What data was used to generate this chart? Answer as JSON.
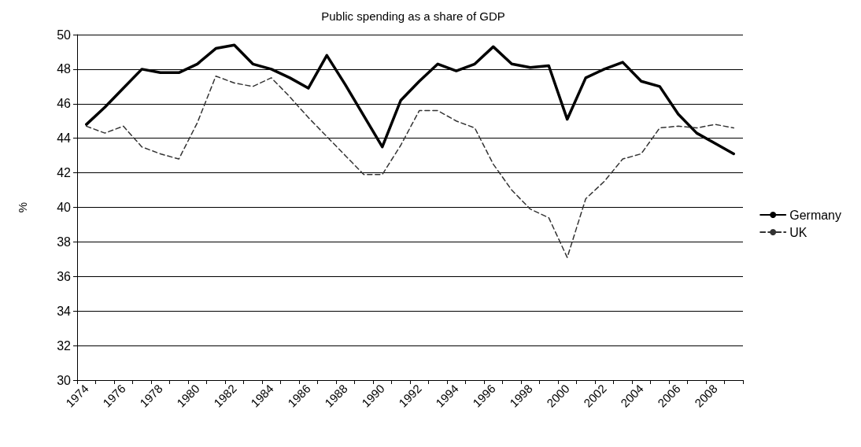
{
  "chart_data": {
    "type": "line",
    "title": "Public spending as a share of GDP",
    "ylabel": "%",
    "categories": [
      "1974",
      null,
      "1976",
      null,
      "1978",
      null,
      "1980",
      null,
      "1982",
      null,
      "1984",
      null,
      "1986",
      null,
      "1988",
      null,
      "1990",
      null,
      "1992",
      null,
      "1994",
      null,
      "1996",
      null,
      "1998",
      null,
      "2000",
      null,
      "2002",
      null,
      "2004",
      null,
      "2006",
      null,
      "2008",
      null
    ],
    "series": [
      {
        "name": "Germany",
        "color": "#000000",
        "line_style": "solid",
        "values": [
          44.8,
          45.8,
          46.9,
          48.0,
          47.8,
          47.8,
          48.3,
          49.2,
          49.4,
          48.3,
          48.0,
          47.5,
          46.9,
          48.8,
          47.1,
          45.3,
          43.5,
          46.2,
          47.3,
          48.3,
          47.9,
          48.3,
          49.3,
          48.3,
          48.1,
          48.2,
          45.1,
          47.5,
          48.0,
          48.4,
          47.3,
          47.0,
          45.4,
          44.3,
          43.7,
          43.1
        ]
      },
      {
        "name": "UK",
        "color": "#333333",
        "line_style": "dashed",
        "values": [
          44.7,
          44.3,
          44.7,
          43.5,
          43.1,
          42.8,
          44.9,
          47.6,
          47.2,
          47.0,
          47.5,
          46.4,
          45.2,
          44.1,
          43.0,
          41.9,
          41.9,
          43.6,
          45.6,
          45.6,
          45.0,
          44.6,
          42.5,
          41.0,
          39.9,
          39.4,
          37.1,
          40.5,
          41.5,
          42.8,
          43.1,
          44.6,
          44.7,
          44.6,
          44.8,
          44.6
        ]
      }
    ],
    "ylim": [
      30,
      50
    ],
    "yticks": [
      30,
      32,
      34,
      36,
      38,
      40,
      42,
      44,
      46,
      48,
      50
    ],
    "grid": "y",
    "legend": "right",
    "marker": "none"
  }
}
